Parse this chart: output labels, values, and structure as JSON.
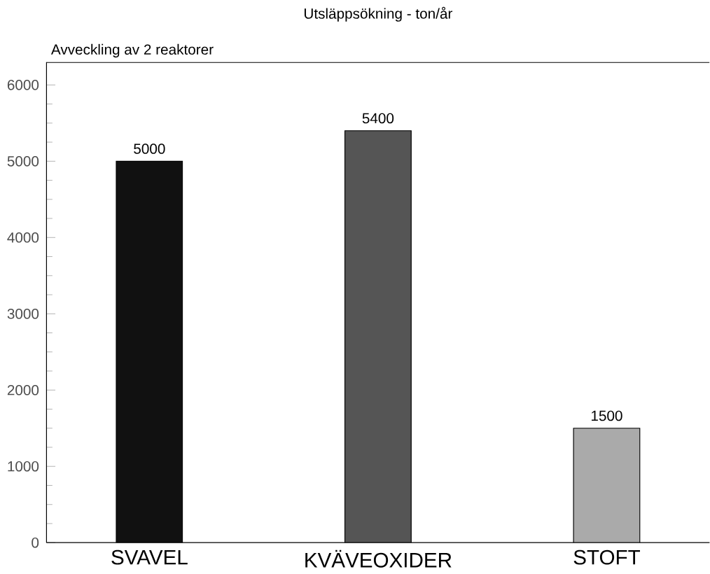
{
  "chart_data": {
    "type": "bar",
    "title": "Utsläppsökning - ton/år",
    "subtitle": "Avveckling av 2 reaktorer",
    "categories": [
      "SVAVEL",
      "KVÄVEOXIDER",
      "STOFT"
    ],
    "values": [
      5000,
      5400,
      1500
    ],
    "colors": [
      "#111111",
      "#555555",
      "#aaaaaa"
    ],
    "data_labels": true,
    "ylim": [
      0,
      6300
    ],
    "yticks": [
      0,
      1000,
      2000,
      3000,
      4000,
      5000,
      6000
    ],
    "grid": false
  }
}
